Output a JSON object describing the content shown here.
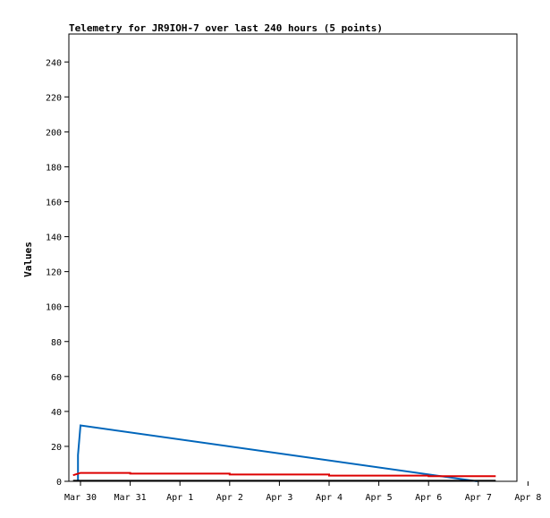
{
  "chart_data": {
    "type": "line",
    "title": "Telemetry for JR9IOH-7 over last 240 hours (5 points)",
    "xlabel": "",
    "ylabel": "Values",
    "x_ticks": [
      "Mar 30",
      "Mar 31",
      "Apr 1",
      "Apr 2",
      "Apr 3",
      "Apr 4",
      "Apr 5",
      "Apr 6",
      "Apr 7",
      "Apr 8"
    ],
    "xlim": [
      0,
      9
    ],
    "y_ticks": [
      0,
      20,
      40,
      60,
      80,
      100,
      120,
      140,
      160,
      180,
      200,
      220,
      240
    ],
    "ylim": [
      0,
      256
    ],
    "grid": false,
    "series": [
      {
        "color": "#0066bb",
        "points": [
          [
            -0.05,
            0
          ],
          [
            -0.05,
            15
          ],
          [
            0.0,
            32
          ],
          [
            7.98,
            0
          ]
        ]
      },
      {
        "color": "#dd0000",
        "points": [
          [
            -0.15,
            3.5
          ],
          [
            0.0,
            4.8
          ],
          [
            1.0,
            4.8
          ],
          [
            1.0,
            4.4
          ],
          [
            3.0,
            4.4
          ],
          [
            3.0,
            3.9
          ],
          [
            5.0,
            3.9
          ],
          [
            5.0,
            3.3
          ],
          [
            7.0,
            3.3
          ],
          [
            7.0,
            2.9
          ],
          [
            8.35,
            2.9
          ]
        ]
      },
      {
        "color": "#000000",
        "points": [
          [
            -0.15,
            0.3
          ],
          [
            8.35,
            0.3
          ]
        ]
      }
    ]
  }
}
